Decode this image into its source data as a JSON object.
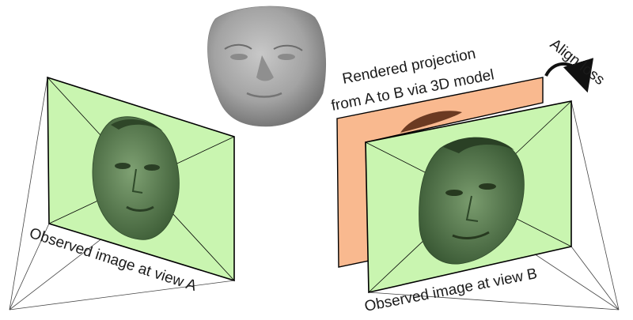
{
  "labels": {
    "view_a": "Observed image at view A",
    "view_b": "Observed image at view B",
    "rendered_line1": "Rendered projection",
    "rendered_line2": "from A to B via 3D model",
    "align_loss": "Align loss"
  },
  "colors": {
    "observed_plane": "#c9f5b0",
    "rendered_plane": "#f9b98f",
    "face_tint": "#5f8a55",
    "model_gray": "#9a9a9a"
  }
}
